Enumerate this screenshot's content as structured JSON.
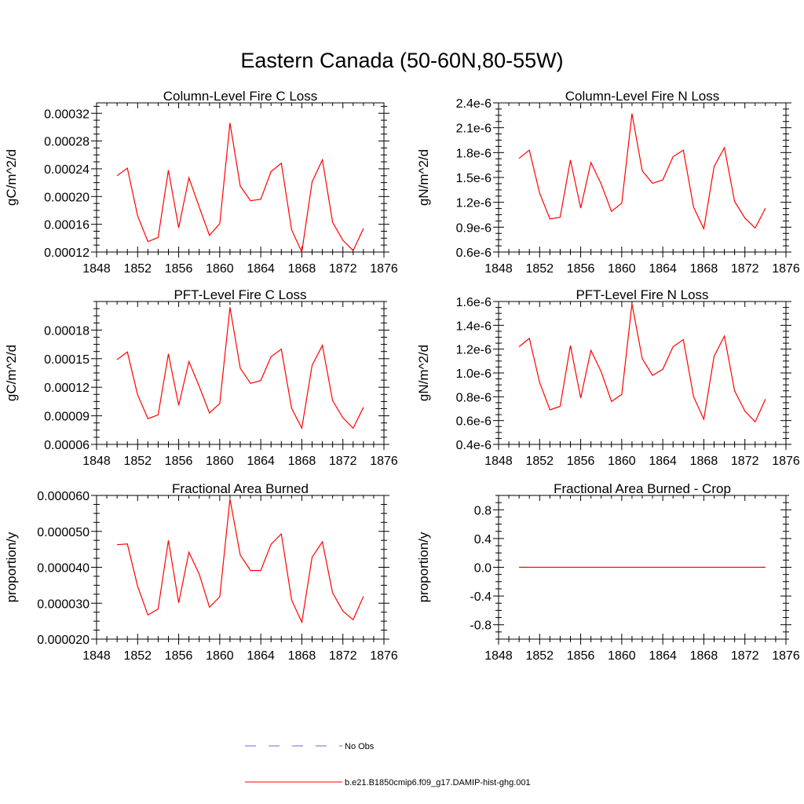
{
  "figure": {
    "title": "Eastern Canada (50-60N,80-55W)"
  },
  "legend": [
    {
      "label": "No Obs",
      "color": "#6a6ad0",
      "style": "dashed"
    },
    {
      "label": "b.e21.B1850cmip6.f09_g17.DAMIP-hist-ghg.001",
      "color": "#ff0000",
      "style": "solid"
    }
  ],
  "chart_data": [
    {
      "type": "line",
      "title": "Column-Level Fire C Loss",
      "ylabel": "gC/m^2/d",
      "xlim": [
        1848,
        1876
      ],
      "ylim": [
        0.00012,
        0.000335
      ],
      "xticks": [
        1848,
        1852,
        1856,
        1860,
        1864,
        1868,
        1872,
        1876
      ],
      "xtick_labels": [
        "1848",
        "1852",
        "1856",
        "1860",
        "1864",
        "1868",
        "1872",
        "1876"
      ],
      "yticks": [
        0.00012,
        0.00016,
        0.0002,
        0.00024,
        0.00028,
        0.00032
      ],
      "ytick_labels": [
        "0.00012",
        "0.00016",
        "0.00020",
        "0.00024",
        "0.00028",
        "0.00032"
      ],
      "series": [
        {
          "color": "#ff0000",
          "x": [
            1850,
            1851,
            1852,
            1853,
            1854,
            1855,
            1856,
            1857,
            1858,
            1859,
            1860,
            1861,
            1862,
            1863,
            1864,
            1865,
            1866,
            1867,
            1868,
            1869,
            1870,
            1871,
            1872,
            1873,
            1874
          ],
          "y": [
            0.00023,
            0.000241,
            0.000172,
            0.000135,
            0.000141,
            0.000238,
            0.000155,
            0.000227,
            0.000185,
            0.000144,
            0.000161,
            0.000306,
            0.000215,
            0.000194,
            0.000196,
            0.000236,
            0.000248,
            0.000152,
            0.00012,
            0.000221,
            0.000253,
            0.000163,
            0.000137,
            0.000122,
            0.000154
          ]
        }
      ]
    },
    {
      "type": "line",
      "title": "Column-Level Fire N Loss",
      "ylabel": "gN/m^2/d",
      "xlim": [
        1848,
        1876
      ],
      "ylim": [
        6e-07,
        2.4e-06
      ],
      "xticks": [
        1848,
        1852,
        1856,
        1860,
        1864,
        1868,
        1872,
        1876
      ],
      "xtick_labels": [
        "1848",
        "1852",
        "1856",
        "1860",
        "1864",
        "1868",
        "1872",
        "1876"
      ],
      "yticks": [
        6e-07,
        9e-07,
        1.2e-06,
        1.5e-06,
        1.8e-06,
        2.1e-06,
        2.4e-06
      ],
      "ytick_labels": [
        "0.6e-6",
        "0.9e-6",
        "1.2e-6",
        "1.5e-6",
        "1.8e-6",
        "2.1e-6",
        "2.4e-6"
      ],
      "series": [
        {
          "color": "#ff0000",
          "x": [
            1850,
            1851,
            1852,
            1853,
            1854,
            1855,
            1856,
            1857,
            1858,
            1859,
            1860,
            1861,
            1862,
            1863,
            1864,
            1865,
            1866,
            1867,
            1868,
            1869,
            1870,
            1871,
            1872,
            1873,
            1874
          ],
          "y": [
            1.73e-06,
            1.83e-06,
            1.31e-06,
            1e-06,
            1.02e-06,
            1.71e-06,
            1.13e-06,
            1.68e-06,
            1.42e-06,
            1.09e-06,
            1.19e-06,
            2.27e-06,
            1.58e-06,
            1.43e-06,
            1.47e-06,
            1.75e-06,
            1.83e-06,
            1.14e-06,
            8.8e-07,
            1.63e-06,
            1.86e-06,
            1.21e-06,
            1.01e-06,
            8.9e-07,
            1.13e-06
          ]
        }
      ]
    },
    {
      "type": "line",
      "title": "PFT-Level Fire C Loss",
      "ylabel": "gC/m^2/d",
      "xlim": [
        1848,
        1876
      ],
      "ylim": [
        6e-05,
        0.00021
      ],
      "xticks": [
        1848,
        1852,
        1856,
        1860,
        1864,
        1868,
        1872,
        1876
      ],
      "xtick_labels": [
        "1848",
        "1852",
        "1856",
        "1860",
        "1864",
        "1868",
        "1872",
        "1876"
      ],
      "yticks": [
        6e-05,
        9e-05,
        0.00012,
        0.00015,
        0.00018
      ],
      "ytick_labels": [
        "0.00006",
        "0.00009",
        "0.00012",
        "0.00015",
        "0.00018"
      ],
      "series": [
        {
          "color": "#ff0000",
          "x": [
            1850,
            1851,
            1852,
            1853,
            1854,
            1855,
            1856,
            1857,
            1858,
            1859,
            1860,
            1861,
            1862,
            1863,
            1864,
            1865,
            1866,
            1867,
            1868,
            1869,
            1870,
            1871,
            1872,
            1873,
            1874
          ],
          "y": [
            0.000149,
            0.000157,
            0.000112,
            8.7e-05,
            9.1e-05,
            0.000155,
            0.000101,
            0.000147,
            0.000121,
            9.3e-05,
            0.000103,
            0.000204,
            0.00014,
            0.000124,
            0.000127,
            0.000152,
            0.00016,
            9.8e-05,
            7.7e-05,
            0.000143,
            0.000164,
            0.000106,
            8.8e-05,
            7.7e-05,
            9.9e-05
          ]
        }
      ]
    },
    {
      "type": "line",
      "title": "PFT-Level Fire N Loss",
      "ylabel": "gN/m^2/d",
      "xlim": [
        1848,
        1876
      ],
      "ylim": [
        4e-07,
        1.6e-06
      ],
      "xticks": [
        1848,
        1852,
        1856,
        1860,
        1864,
        1868,
        1872,
        1876
      ],
      "xtick_labels": [
        "1848",
        "1852",
        "1856",
        "1860",
        "1864",
        "1868",
        "1872",
        "1876"
      ],
      "yticks": [
        4e-07,
        6e-07,
        8e-07,
        1e-06,
        1.2e-06,
        1.4e-06,
        1.6e-06
      ],
      "ytick_labels": [
        "0.4e-6",
        "0.6e-6",
        "0.8e-6",
        "1.0e-6",
        "1.2e-6",
        "1.4e-6",
        "1.6e-6"
      ],
      "series": [
        {
          "color": "#ff0000",
          "x": [
            1850,
            1851,
            1852,
            1853,
            1854,
            1855,
            1856,
            1857,
            1858,
            1859,
            1860,
            1861,
            1862,
            1863,
            1864,
            1865,
            1866,
            1867,
            1868,
            1869,
            1870,
            1871,
            1872,
            1873,
            1874
          ],
          "y": [
            1.22e-06,
            1.29e-06,
            9.2e-07,
            6.9e-07,
            7.2e-07,
            1.23e-06,
            7.9e-07,
            1.19e-06,
            1.01e-06,
            7.6e-07,
            8.2e-07,
            1.58e-06,
            1.12e-06,
            9.8e-07,
            1.03e-06,
            1.22e-06,
            1.28e-06,
            8e-07,
            6.1e-07,
            1.14e-06,
            1.31e-06,
            8.5e-07,
            6.8e-07,
            5.9e-07,
            7.8e-07
          ]
        }
      ]
    },
    {
      "type": "line",
      "title": "Fractional Area Burned",
      "ylabel": "proportion/y",
      "xlim": [
        1848,
        1876
      ],
      "ylim": [
        2e-05,
        6e-05
      ],
      "xticks": [
        1848,
        1852,
        1856,
        1860,
        1864,
        1868,
        1872,
        1876
      ],
      "xtick_labels": [
        "1848",
        "1852",
        "1856",
        "1860",
        "1864",
        "1868",
        "1872",
        "1876"
      ],
      "yticks": [
        2e-05,
        3e-05,
        4e-05,
        5e-05,
        6e-05
      ],
      "ytick_labels": [
        "0.000020",
        "0.000030",
        "0.000040",
        "0.000050",
        "0.000060"
      ],
      "series": [
        {
          "color": "#ff0000",
          "x": [
            1850,
            1851,
            1852,
            1853,
            1854,
            1855,
            1856,
            1857,
            1858,
            1859,
            1860,
            1861,
            1862,
            1863,
            1864,
            1865,
            1866,
            1867,
            1868,
            1869,
            1870,
            1871,
            1872,
            1873,
            1874
          ],
          "y": [
            4.63e-05,
            4.65e-05,
            3.47e-05,
            2.67e-05,
            2.84e-05,
            4.75e-05,
            3.01e-05,
            4.42e-05,
            3.81e-05,
            2.89e-05,
            3.18e-05,
            5.9e-05,
            4.34e-05,
            3.91e-05,
            3.91e-05,
            4.64e-05,
            4.93e-05,
            3.09e-05,
            2.47e-05,
            4.28e-05,
            4.71e-05,
            3.29e-05,
            2.78e-05,
            2.54e-05,
            3.19e-05
          ]
        }
      ]
    },
    {
      "type": "line",
      "title": "Fractional Area Burned - Crop",
      "ylabel": "proportion/y",
      "xlim": [
        1848,
        1876
      ],
      "ylim": [
        -1.0,
        1.0
      ],
      "xticks": [
        1848,
        1852,
        1856,
        1860,
        1864,
        1868,
        1872,
        1876
      ],
      "xtick_labels": [
        "1848",
        "1852",
        "1856",
        "1860",
        "1864",
        "1868",
        "1872",
        "1876"
      ],
      "yticks": [
        -0.8,
        -0.4,
        0.0,
        0.4,
        0.8
      ],
      "ytick_labels": [
        "-0.8",
        "-0.4",
        "0.0",
        "0.4",
        "0.8"
      ],
      "series": [
        {
          "color": "#ff0000",
          "x": [
            1850,
            1851,
            1852,
            1853,
            1854,
            1855,
            1856,
            1857,
            1858,
            1859,
            1860,
            1861,
            1862,
            1863,
            1864,
            1865,
            1866,
            1867,
            1868,
            1869,
            1870,
            1871,
            1872,
            1873,
            1874
          ],
          "y": [
            0,
            0,
            0,
            0,
            0,
            0,
            0,
            0,
            0,
            0,
            0,
            0,
            0,
            0,
            0,
            0,
            0,
            0,
            0,
            0,
            0,
            0,
            0,
            0,
            0
          ]
        }
      ]
    }
  ]
}
